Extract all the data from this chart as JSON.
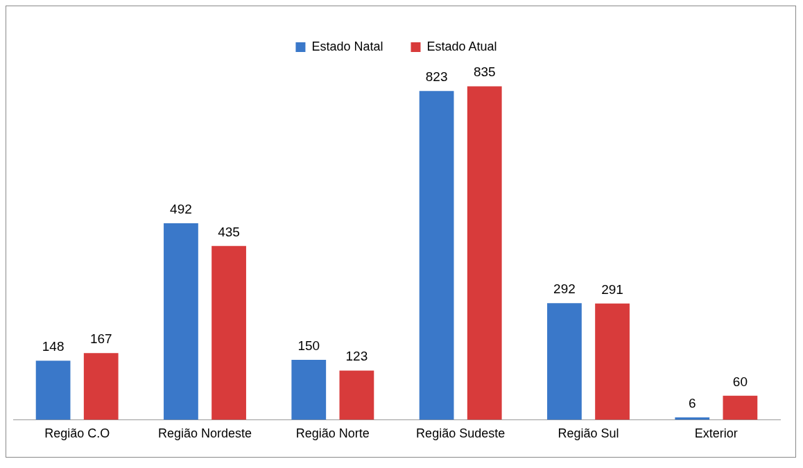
{
  "chart_data": {
    "type": "bar",
    "categories": [
      "Região C.O",
      "Região Nordeste",
      "Região Norte",
      "Região Sudeste",
      "Região Sul",
      "Exterior"
    ],
    "series": [
      {
        "name": "Estado Natal",
        "color": "#3a78c9",
        "values": [
          148,
          492,
          150,
          823,
          292,
          6
        ]
      },
      {
        "name": "Estado Atual",
        "color": "#d83b3b",
        "values": [
          167,
          435,
          123,
          835,
          291,
          60
        ]
      }
    ],
    "data_labels": true,
    "legend": "top",
    "grid": false
  }
}
